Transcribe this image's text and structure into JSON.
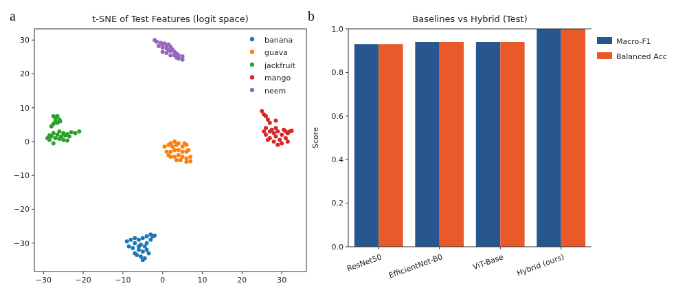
{
  "chart_data": [
    {
      "type": "scatter",
      "title": "t-SNE of Test Features (logit space)",
      "annotations": [
        "a"
      ],
      "marker": "circle",
      "legend": "top right",
      "xlim": [
        -32.3,
        36.2
      ],
      "ylim": [
        -38.4,
        33.3
      ],
      "xticks": [
        {
          "value": -30,
          "label": "−30"
        },
        {
          "value": -20,
          "label": "−20"
        },
        {
          "value": -10,
          "label": "−10"
        },
        0,
        10,
        20,
        30
      ],
      "yticks": [
        {
          "value": -30,
          "label": "−30"
        },
        {
          "value": -20,
          "label": "−20"
        },
        {
          "value": -10,
          "label": "−10"
        },
        0,
        10,
        20,
        30
      ],
      "series": [
        {
          "name": "banana",
          "color": "#1f77b4",
          "x": [
            -9,
            -8,
            -7,
            -8.5,
            -7.5,
            -7,
            -6,
            -5.5,
            -5,
            -4,
            -3,
            -2.5,
            -4.5,
            -6,
            -5,
            -4,
            -3.5,
            -5.5,
            -4.5,
            -6.5,
            -7,
            -4,
            -3,
            -5,
            -2,
            -6
          ],
          "values": [
            -29.5,
            -29,
            -28.5,
            -31,
            -31.5,
            -30,
            -29,
            -30.5,
            -28.5,
            -28,
            -27.5,
            -28,
            -31,
            -32,
            -32.5,
            -32,
            -33,
            -34,
            -34.5,
            -33.5,
            -33,
            -30,
            -29,
            -35,
            -27.8,
            -31
          ]
        },
        {
          "name": "guava",
          "color": "#ff7f0e",
          "x": [
            0.5,
            1.5,
            2,
            2.5,
            3,
            3.5,
            4,
            5,
            5.5,
            6,
            1,
            2,
            3,
            4,
            5,
            6,
            6.5,
            2,
            3,
            4,
            5,
            6,
            7,
            4.5,
            6,
            7,
            3.5,
            1.5
          ],
          "values": [
            -1.5,
            -1,
            -0.5,
            -1.5,
            0,
            -1,
            -0.5,
            -1.5,
            -0.5,
            -1,
            -3,
            -3,
            -2.5,
            -2.5,
            -3,
            -3,
            -2.5,
            -4.5,
            -4.5,
            -4,
            -4.5,
            -5,
            -4.5,
            -5.5,
            -6,
            -5.8,
            -5.5,
            -4
          ]
        },
        {
          "name": "jackfruit",
          "color": "#2ca02c",
          "x": [
            -27.5,
            -27,
            -26.5,
            -26,
            -27,
            -26.5,
            -25.8,
            -28,
            -27.5,
            -29,
            -28.5,
            -28,
            -27.5,
            -27,
            -26.5,
            -26,
            -25.5,
            -25,
            -24.5,
            -24,
            -23.5,
            -23,
            -22,
            -21,
            -25,
            -26,
            -27.5,
            -28.5,
            -24
          ],
          "values": [
            7.5,
            7,
            7.5,
            6.5,
            6,
            5.5,
            6,
            4.5,
            5.2,
            1,
            0.5,
            1.5,
            -0.5,
            1,
            2,
            0.8,
            1.5,
            2.5,
            1.8,
            2.2,
            1.5,
            2.8,
            2.5,
            3,
            0.5,
            3,
            2.5,
            1.8,
            0.3
          ]
        },
        {
          "name": "mango",
          "color": "#d62728",
          "x": [
            25,
            25.5,
            26,
            26.5,
            27,
            28.5,
            26,
            25.5,
            26,
            27,
            27,
            28,
            28,
            28.5,
            29,
            29,
            29.5,
            30,
            30,
            31,
            31,
            31.5,
            32,
            32.5,
            31.5,
            27.5,
            28.5,
            30.5,
            26.5
          ],
          "values": [
            9,
            8,
            7.5,
            6.5,
            5.5,
            6.2,
            4,
            3,
            2,
            3,
            1,
            2.5,
            0,
            1.5,
            -1,
            3,
            0.5,
            2,
            -0.5,
            1,
            3,
            2.5,
            3,
            3.2,
            0,
            3.5,
            4,
            3.5,
            0.5
          ]
        },
        {
          "name": "neem",
          "color": "#9467bd",
          "x": [
            -2,
            -1.5,
            -0.5,
            0,
            0.5,
            1,
            1.5,
            2,
            -1,
            0,
            1,
            1.5,
            2,
            2.5,
            3,
            3,
            3.5,
            4,
            4,
            5,
            5,
            3.5,
            2,
            1,
            0
          ],
          "values": [
            30,
            29.5,
            29.2,
            28.8,
            29,
            28.5,
            28.7,
            28,
            28.2,
            27.8,
            27.5,
            27,
            26.8,
            27.2,
            26.5,
            25.5,
            26,
            25.5,
            24.5,
            25.2,
            24.2,
            24.8,
            25.5,
            26.2,
            26.5
          ]
        }
      ]
    },
    {
      "type": "bar",
      "title": "Baselines vs Hybrid (Test)",
      "annotations": [
        "b"
      ],
      "ylabel": "Score",
      "legend": "right",
      "categories": [
        "ResNet50",
        "EfficientNet-B0",
        "ViT-Base",
        "Hybrid (ours)"
      ],
      "ylim": [
        0,
        1
      ],
      "yticks": [
        {
          "value": 0,
          "label": "0.0"
        },
        {
          "value": 0.2,
          "label": "0.2"
        },
        {
          "value": 0.4,
          "label": "0.4"
        },
        {
          "value": 0.6,
          "label": "0.6"
        },
        {
          "value": 0.8,
          "label": "0.8"
        },
        {
          "value": 1,
          "label": "1.0"
        }
      ],
      "series": [
        {
          "name": "Macro-F1",
          "color": "#28568f",
          "values": [
            0.93,
            0.94,
            0.94,
            1.0
          ]
        },
        {
          "name": "Balanced Acc",
          "color": "#e85a2a",
          "values": [
            0.93,
            0.94,
            0.94,
            1.0
          ]
        }
      ]
    }
  ]
}
